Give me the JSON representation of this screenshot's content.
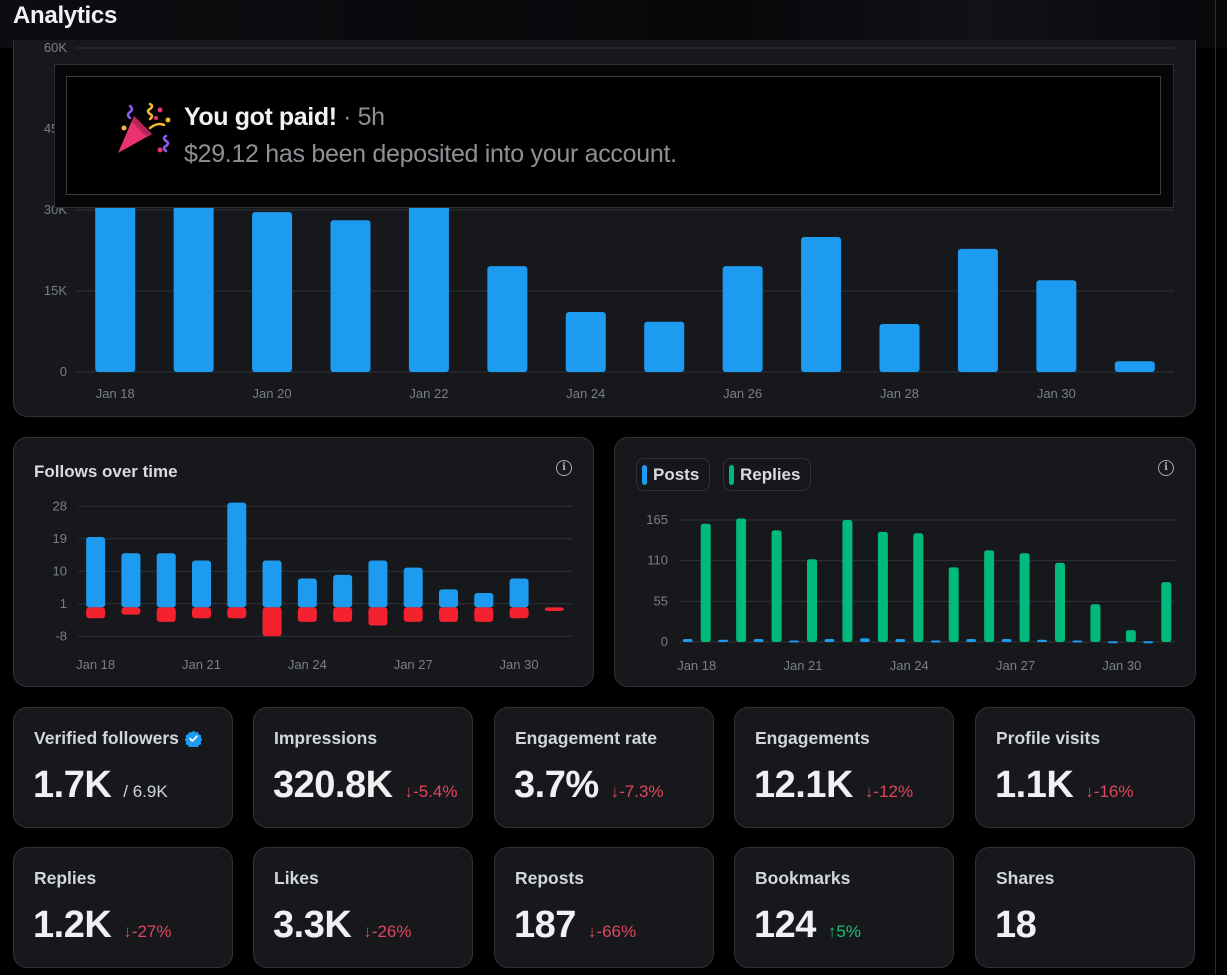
{
  "header": {
    "title": "Analytics"
  },
  "notification": {
    "icon": "party-popper-icon",
    "title": "You got paid!",
    "separator": " · ",
    "time": "5h",
    "body": "$29.12 has been deposited into your account."
  },
  "colors": {
    "blue": "#1d9bf0",
    "red": "#f4212e",
    "green": "#00ba7c",
    "down": "#e0455c",
    "up": "#1fbf74"
  },
  "chart_data": [
    {
      "id": "impressions",
      "type": "bar",
      "title": "",
      "categories": [
        "Jan 18",
        "Jan 19",
        "Jan 20",
        "Jan 21",
        "Jan 22",
        "Jan 23",
        "Jan 24",
        "Jan 25",
        "Jan 26",
        "Jan 27",
        "Jan 28",
        "Jan 29",
        "Jan 30",
        "Jan 31"
      ],
      "tick_labels": [
        "Jan 18",
        "Jan 20",
        "Jan 22",
        "Jan 24",
        "Jan 26",
        "Jan 28",
        "Jan 30"
      ],
      "series": [
        {
          "name": "Impressions",
          "color": "#1d9bf0",
          "values": [
            31000,
            31000,
            29600,
            28100,
            31000,
            19600,
            11100,
            9300,
            19600,
            25000,
            8900,
            22800,
            17000,
            2000
          ]
        }
      ],
      "yticks": [
        0,
        15000,
        30000,
        45000,
        60000
      ],
      "ytick_labels": [
        "0",
        "15K",
        "30K",
        "45K",
        "60K"
      ],
      "ylim": [
        0,
        60000
      ],
      "xlabel": "",
      "ylabel": "",
      "grid": true
    },
    {
      "id": "follows",
      "type": "bar",
      "title": "Follows over time",
      "categories": [
        "Jan 18",
        "Jan 19",
        "Jan 20",
        "Jan 21",
        "Jan 22",
        "Jan 23",
        "Jan 24",
        "Jan 25",
        "Jan 26",
        "Jan 27",
        "Jan 28",
        "Jan 29",
        "Jan 30",
        "Jan 31"
      ],
      "tick_labels": [
        "Jan 18",
        "Jan 21",
        "Jan 24",
        "Jan 27",
        "Jan 30"
      ],
      "series": [
        {
          "name": "Follows",
          "color": "#1d9bf0",
          "values": [
            19.5,
            15,
            15,
            13,
            29,
            13,
            8,
            9,
            13,
            11,
            5,
            4,
            8,
            0
          ]
        },
        {
          "name": "Unfollows",
          "color": "#f4212e",
          "values": [
            -3,
            -2,
            -4,
            -3,
            -3,
            -8,
            -4,
            -4,
            -5,
            -4,
            -4,
            -4,
            -3,
            -1
          ]
        }
      ],
      "yticks": [
        -8,
        1,
        10,
        19,
        28
      ],
      "ytick_labels": [
        "-8",
        "1",
        "10",
        "19",
        "28"
      ],
      "ylim": [
        -9,
        29
      ],
      "xlabel": "",
      "ylabel": "",
      "grid": true
    },
    {
      "id": "posts-replies",
      "type": "bar",
      "title": "",
      "categories": [
        "Jan 18",
        "Jan 19",
        "Jan 20",
        "Jan 21",
        "Jan 22",
        "Jan 23",
        "Jan 24",
        "Jan 25",
        "Jan 26",
        "Jan 27",
        "Jan 28",
        "Jan 29",
        "Jan 30",
        "Jan 31"
      ],
      "tick_labels": [
        "Jan 18",
        "Jan 21",
        "Jan 24",
        "Jan 27",
        "Jan 30"
      ],
      "legend": [
        "Posts",
        "Replies"
      ],
      "legend_position": "top-left",
      "series": [
        {
          "name": "Posts",
          "color": "#1d9bf0",
          "values": [
            4,
            3,
            4,
            2,
            4,
            5,
            4,
            2,
            4,
            4,
            3,
            2,
            1,
            1
          ]
        },
        {
          "name": "Replies",
          "color": "#00ba7c",
          "values": [
            160,
            167,
            151,
            112,
            165,
            149,
            147,
            101,
            124,
            120,
            107,
            51,
            16,
            81
          ]
        }
      ],
      "yticks": [
        0,
        55,
        110,
        165
      ],
      "ytick_labels": [
        "0",
        "55",
        "110",
        "165"
      ],
      "ylim": [
        0,
        170
      ],
      "xlabel": "",
      "ylabel": "",
      "grid": true
    }
  ],
  "stats": [
    {
      "label": "Verified followers",
      "value": "1.7K",
      "sub": "/ 6.9K",
      "delta": "",
      "dir": "",
      "badge": true
    },
    {
      "label": "Impressions",
      "value": "320.8K",
      "delta": "-5.4%",
      "dir": "down"
    },
    {
      "label": "Engagement rate",
      "value": "3.7%",
      "delta": "-7.3%",
      "dir": "down"
    },
    {
      "label": "Engagements",
      "value": "12.1K",
      "delta": "-12%",
      "dir": "down"
    },
    {
      "label": "Profile visits",
      "value": "1.1K",
      "delta": "-16%",
      "dir": "down"
    },
    {
      "label": "Replies",
      "value": "1.2K",
      "delta": "-27%",
      "dir": "down"
    },
    {
      "label": "Likes",
      "value": "3.3K",
      "delta": "-26%",
      "dir": "down"
    },
    {
      "label": "Reposts",
      "value": "187",
      "delta": "-66%",
      "dir": "down"
    },
    {
      "label": "Bookmarks",
      "value": "124",
      "delta": "5%",
      "dir": "up"
    },
    {
      "label": "Shares",
      "value": "18",
      "delta": "",
      "dir": ""
    }
  ],
  "arrows": {
    "down": "↓",
    "up": "↑"
  }
}
